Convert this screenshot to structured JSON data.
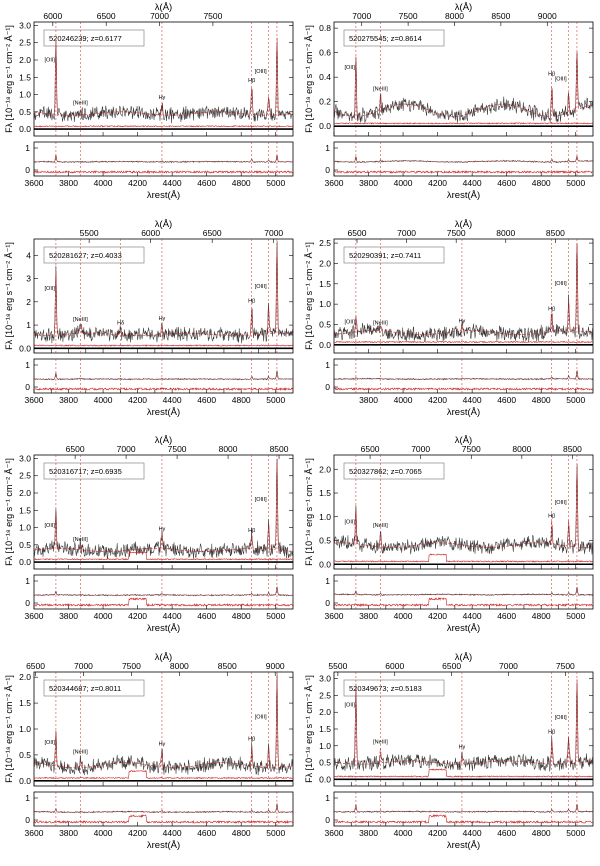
{
  "labels": {
    "xtop": "λ(Å)",
    "xbottom": "λrest(Å)",
    "ylabel": "Fλ [10⁻¹⁸ erg s⁻¹ cm⁻² Å⁻¹]"
  },
  "chart_data": [
    {
      "type": "line",
      "id": "520246239",
      "z": 0.6177,
      "legend": "520246239; z=0.6177",
      "xlim": [
        3600,
        5100
      ],
      "xticks": [
        3600,
        3800,
        4000,
        4200,
        4400,
        4600,
        4800,
        5000
      ],
      "top_ticks": [
        6000,
        6500,
        7000,
        7500
      ],
      "ylim": [
        -0.2,
        3.1
      ],
      "yticks": [
        0.0,
        0.5,
        1.0,
        1.5,
        2.0,
        2.5,
        3.0
      ],
      "continuum": 0.45,
      "lines": [
        {
          "label": "[OII]",
          "rest": 3727,
          "peak": 2.6
        },
        {
          "label": "[NeIII]",
          "rest": 3869,
          "peak": 0.6
        },
        {
          "label": "Hγ",
          "rest": 4341,
          "peak": 0.75
        },
        {
          "label": "Hβ",
          "rest": 4861,
          "peak": 1.25
        },
        {
          "label": "[OIII]",
          "rest": 4959,
          "peak": 1.0
        },
        {
          "label": "[OIII]",
          "rest": 5007,
          "peak": 2.75
        }
      ]
    },
    {
      "type": "line",
      "id": "520275545",
      "z": 0.8614,
      "legend": "520275545; z=0.8614",
      "xlim": [
        3600,
        5100
      ],
      "xticks": [
        3600,
        3800,
        4000,
        4200,
        4400,
        4600,
        4800,
        5000
      ],
      "top_ticks": [
        7000,
        7500,
        8000,
        8500,
        9000
      ],
      "ylim": [
        -0.08,
        0.85
      ],
      "yticks": [
        0.0,
        0.2,
        0.4,
        0.6,
        0.8
      ],
      "continuum": 0.13,
      "lines": [
        {
          "label": "[OII]",
          "rest": 3727,
          "peak": 0.62
        },
        {
          "label": "[NeIII]",
          "rest": 3869,
          "peak": 0.26
        },
        {
          "label": "Hβ",
          "rest": 4861,
          "peak": 0.38
        },
        {
          "label": "[OIII]",
          "rest": 4959,
          "peak": 0.3
        },
        {
          "label": "[OIII]",
          "rest": 5007,
          "peak": 0.62
        }
      ]
    },
    {
      "type": "line",
      "id": "520281627",
      "z": 0.4033,
      "legend": "520281627; z=0.4033",
      "xlim": [
        3600,
        5100
      ],
      "xticks": [
        3600,
        3700,
        3800,
        3900,
        4000,
        4100,
        4200,
        4300,
        4400,
        4500,
        4600,
        4700,
        4800,
        4900,
        5000
      ],
      "top_ticks": [
        5500,
        6000,
        6500,
        7000
      ],
      "ylim": [
        -0.2,
        4.7
      ],
      "yticks": [
        0,
        1,
        2,
        3,
        4
      ],
      "continuum": 0.6,
      "lines": [
        {
          "label": "[OII]",
          "rest": 3727,
          "peak": 3.35
        },
        {
          "label": "[NeIII]",
          "rest": 3869,
          "peak": 1.0
        },
        {
          "label": "Hδ",
          "rest": 4102,
          "peak": 0.85
        },
        {
          "label": "Hγ",
          "rest": 4341,
          "peak": 1.05
        },
        {
          "label": "Hβ",
          "rest": 4861,
          "peak": 1.8
        },
        {
          "label": "[OIII]",
          "rest": 4959,
          "peak": 1.75
        },
        {
          "label": "[OIII]",
          "rest": 5007,
          "peak": 4.4
        }
      ]
    },
    {
      "type": "line",
      "id": "520290391",
      "z": 0.7411,
      "legend": "520290391; z=0.7411",
      "xlim": [
        3600,
        5100
      ],
      "xticks": [
        3800,
        4000,
        4200,
        4400,
        4600,
        4800,
        5000
      ],
      "top_ticks": [
        6500,
        7000,
        7500,
        8000,
        8500
      ],
      "ylim": [
        -0.2,
        2.6
      ],
      "yticks": [
        0.0,
        0.5,
        1.0,
        1.5,
        2.0,
        2.5
      ],
      "continuum": 0.3,
      "lines": [
        {
          "label": "[OII]",
          "rest": 3727,
          "peak": 0.7
        },
        {
          "label": "[NeIII]",
          "rest": 3869,
          "peak": 0.4
        },
        {
          "label": "Hγ",
          "rest": 4341,
          "peak": 0.45
        },
        {
          "label": "Hβ",
          "rest": 4861,
          "peak": 0.75
        },
        {
          "label": "[OIII]",
          "rest": 4959,
          "peak": 1.05
        },
        {
          "label": "[OIII]",
          "rest": 5007,
          "peak": 2.5
        }
      ]
    },
    {
      "type": "line",
      "id": "520316717",
      "z": 0.6935,
      "legend": "520316717; z=0.6935",
      "xlim": [
        3600,
        5100
      ],
      "xticks": [
        3600,
        3800,
        4000,
        4200,
        4400,
        4600,
        4800,
        5000
      ],
      "top_ticks": [
        6500,
        7000,
        7500,
        8000,
        8500
      ],
      "ylim": [
        -0.2,
        3.1
      ],
      "yticks": [
        0.0,
        0.5,
        1.0,
        1.5,
        2.0,
        2.5,
        3.0
      ],
      "continuum": 0.35,
      "lines": [
        {
          "label": "[OII]",
          "rest": 3727,
          "peak": 1.35
        },
        {
          "label": "[NeIII]",
          "rest": 3869,
          "peak": 0.5
        },
        {
          "label": "Hγ",
          "rest": 4341,
          "peak": 0.8
        },
        {
          "label": "Hβ",
          "rest": 4861,
          "peak": 0.75
        },
        {
          "label": "[OIII]",
          "rest": 4959,
          "peak": 1.1
        },
        {
          "label": "[OIII]",
          "rest": 5007,
          "peak": 3.0
        }
      ]
    },
    {
      "type": "line",
      "id": "520327862",
      "z": 0.7065,
      "legend": "520327862; z=0.7065",
      "xlim": [
        3600,
        5100
      ],
      "xticks": [
        3600,
        3700,
        3800,
        3900,
        4000,
        4100,
        4200,
        4300,
        4400,
        4500,
        4600,
        4700,
        4800,
        4900,
        5000
      ],
      "top_ticks": [
        6500,
        7000,
        7500,
        8000,
        8500
      ],
      "ylim": [
        -0.1,
        2.3
      ],
      "yticks": [
        0.0,
        0.5,
        1.0,
        1.5,
        2.0
      ],
      "continuum": 0.4,
      "lines": [
        {
          "label": "[OII]",
          "rest": 3727,
          "peak": 1.15
        },
        {
          "label": "[NeIII]",
          "rest": 3869,
          "peak": 0.7
        },
        {
          "label": "Hβ",
          "rest": 4861,
          "peak": 0.9
        },
        {
          "label": "[OIII]",
          "rest": 4959,
          "peak": 0.95
        },
        {
          "label": "[OIII]",
          "rest": 5007,
          "peak": 2.15
        }
      ]
    },
    {
      "type": "line",
      "id": "520344687",
      "z": 0.8011,
      "legend": "520344687; z=0.8011",
      "xlim": [
        3600,
        5100
      ],
      "xticks": [
        3600,
        3800,
        4000,
        4200,
        4400,
        4600,
        4800,
        5000
      ],
      "top_ticks": [
        6500,
        7000,
        7500,
        8000,
        8500,
        9000
      ],
      "ylim": [
        -0.1,
        2.1
      ],
      "yticks": [
        0.0,
        0.5,
        1.0,
        1.5,
        2.0
      ],
      "continuum": 0.3,
      "lines": [
        {
          "label": "[OII]",
          "rest": 3727,
          "peak": 0.95
        },
        {
          "label": "[NeIII]",
          "rest": 3869,
          "peak": 0.45
        },
        {
          "label": "Hγ",
          "rest": 4341,
          "peak": 0.6
        },
        {
          "label": "Hβ",
          "rest": 4861,
          "peak": 0.7
        },
        {
          "label": "[OIII]",
          "rest": 4959,
          "peak": 0.7
        },
        {
          "label": "[OIII]",
          "rest": 5007,
          "peak": 2.05
        }
      ]
    },
    {
      "type": "line",
      "id": "520349673",
      "z": 0.5183,
      "legend": "520349673; z=0.5183",
      "xlim": [
        3600,
        5100
      ],
      "xticks": [
        3600,
        3700,
        3800,
        3900,
        4000,
        4100,
        4200,
        4300,
        4400,
        4500,
        4600,
        4700,
        4800,
        4900,
        5000
      ],
      "top_ticks": [
        5500,
        6000,
        6500,
        7000,
        7500
      ],
      "ylim": [
        -0.2,
        3.2
      ],
      "yticks": [
        0.0,
        0.5,
        1.0,
        1.5,
        2.0,
        2.5,
        3.0
      ],
      "continuum": 0.5,
      "lines": [
        {
          "label": "[OII]",
          "rest": 3727,
          "peak": 2.9
        },
        {
          "label": "[NeIII]",
          "rest": 3869,
          "peak": 0.95
        },
        {
          "label": "Hγ",
          "rest": 4341,
          "peak": 0.8
        },
        {
          "label": "Hβ",
          "rest": 4861,
          "peak": 1.25
        },
        {
          "label": "[OIII]",
          "rest": 4959,
          "peak": 1.3
        },
        {
          "label": "[OIII]",
          "rest": 5007,
          "peak": 3.05
        }
      ]
    }
  ]
}
